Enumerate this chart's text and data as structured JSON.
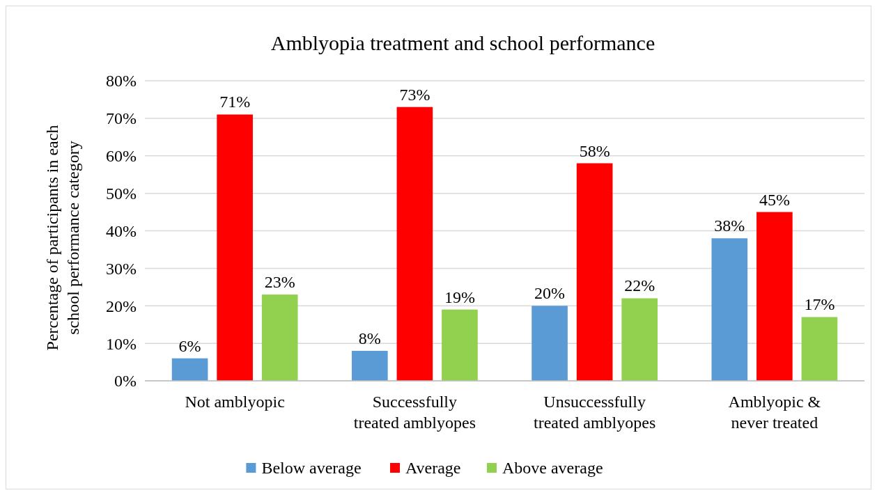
{
  "chart_data": {
    "type": "bar",
    "title": "Amblyopia treatment and school performance",
    "ylabel": "Percentage of participants in each school performance category",
    "categories": [
      "Not amblyopic",
      "Successfully treated amblyopes",
      "Unsuccessfully treated amblyopes",
      "Amblyopic & never treated"
    ],
    "series": [
      {
        "name": "Below average",
        "color": "#5b9bd5",
        "values": [
          6,
          8,
          20,
          38
        ],
        "value_labels": [
          "6%",
          "8%",
          "20%",
          "38%"
        ]
      },
      {
        "name": "Average",
        "color": "#ff0000",
        "values": [
          71,
          73,
          58,
          45
        ],
        "value_labels": [
          "71%",
          "73%",
          "58%",
          "45%"
        ]
      },
      {
        "name": "Above average",
        "color": "#92d050",
        "values": [
          23,
          19,
          22,
          17
        ],
        "value_labels": [
          "23%",
          "19%",
          "22%",
          "17%"
        ]
      }
    ],
    "ylim": [
      0,
      80
    ],
    "yticks": [
      {
        "value": 0,
        "label": "0%"
      },
      {
        "value": 10,
        "label": "10%"
      },
      {
        "value": 20,
        "label": "20%"
      },
      {
        "value": 30,
        "label": "30%"
      },
      {
        "value": 40,
        "label": "40%"
      },
      {
        "value": 50,
        "label": "50%"
      },
      {
        "value": 60,
        "label": "60%"
      },
      {
        "value": 70,
        "label": "70%"
      },
      {
        "value": 80,
        "label": "80%"
      }
    ],
    "grid": "y",
    "legend": "bottom"
  }
}
